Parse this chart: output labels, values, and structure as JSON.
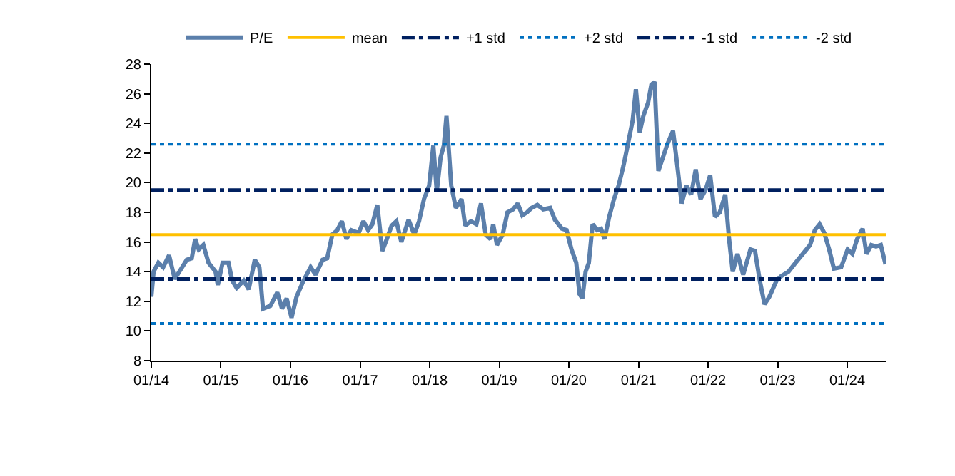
{
  "chart_data": {
    "type": "line",
    "legend": "top",
    "grid": false,
    "xlim": [
      "2014-01-01",
      "2024-07-25"
    ],
    "xticks": [
      {
        "value": "2014-01-01",
        "label": "01/14"
      },
      {
        "value": "2015-01-01",
        "label": "01/15"
      },
      {
        "value": "2016-01-01",
        "label": "01/16"
      },
      {
        "value": "2017-01-01",
        "label": "01/17"
      },
      {
        "value": "2018-01-01",
        "label": "01/18"
      },
      {
        "value": "2019-01-01",
        "label": "01/19"
      },
      {
        "value": "2020-01-01",
        "label": "01/20"
      },
      {
        "value": "2021-01-01",
        "label": "01/21"
      },
      {
        "value": "2022-01-01",
        "label": "01/22"
      },
      {
        "value": "2023-01-01",
        "label": "01/23"
      },
      {
        "value": "2024-01-01",
        "label": "01/24"
      }
    ],
    "ylim": [
      8,
      28
    ],
    "yticks": [
      8,
      10,
      12,
      14,
      16,
      18,
      20,
      22,
      24,
      26,
      28
    ],
    "series": [
      {
        "name": "P/E",
        "color": "#5b7fab",
        "line_style": "solid",
        "x": [
          "2014-01-01",
          "2014-01-13",
          "2014-02-07",
          "2014-03-04",
          "2014-04-04",
          "2014-05-04",
          "2014-05-28",
          "2014-07-06",
          "2014-08-01",
          "2014-08-19",
          "2014-09-07",
          "2014-10-01",
          "2014-10-28",
          "2014-12-04",
          "2014-12-16",
          "2015-01-10",
          "2015-02-10",
          "2015-03-01",
          "2015-03-25",
          "2015-05-01",
          "2015-05-27",
          "2015-06-28",
          "2015-07-22",
          "2015-08-10",
          "2015-09-18",
          "2015-10-24",
          "2015-11-18",
          "2015-12-12",
          "2016-01-07",
          "2016-02-02",
          "2016-03-10",
          "2016-04-16",
          "2016-05-12",
          "2016-06-18",
          "2016-07-12",
          "2016-08-08",
          "2016-09-03",
          "2016-09-27",
          "2016-10-21",
          "2016-11-15",
          "2016-12-24",
          "2017-01-18",
          "2017-02-12",
          "2017-03-06",
          "2017-04-01",
          "2017-04-27",
          "2017-05-21",
          "2017-06-15",
          "2017-07-10",
          "2017-08-05",
          "2017-09-12",
          "2017-10-12",
          "2017-11-06",
          "2017-12-02",
          "2017-12-29",
          "2018-01-20",
          "2018-02-07",
          "2018-02-27",
          "2018-03-16",
          "2018-03-30",
          "2018-04-24",
          "2018-05-18",
          "2018-06-17",
          "2018-07-06",
          "2018-08-05",
          "2018-09-03",
          "2018-09-27",
          "2018-10-22",
          "2018-11-16",
          "2018-11-30",
          "2018-12-20",
          "2019-01-19",
          "2019-02-13",
          "2019-03-14",
          "2019-04-08",
          "2019-05-02",
          "2019-05-27",
          "2019-06-20",
          "2019-07-20",
          "2019-08-20",
          "2019-09-25",
          "2019-10-20",
          "2019-11-26",
          "2019-12-20",
          "2020-01-15",
          "2020-02-09",
          "2020-02-26",
          "2020-03-12",
          "2020-03-29",
          "2020-04-15",
          "2020-05-05",
          "2020-05-29",
          "2020-06-18",
          "2020-07-06",
          "2020-07-31",
          "2020-08-25",
          "2020-09-18",
          "2020-10-13",
          "2020-11-06",
          "2020-12-01",
          "2020-12-18",
          "2021-01-07",
          "2021-01-26",
          "2021-02-20",
          "2021-03-09",
          "2021-03-26",
          "2021-04-15",
          "2021-06-01",
          "2021-07-01",
          "2021-07-21",
          "2021-08-15",
          "2021-09-09",
          "2021-10-04",
          "2021-10-28",
          "2021-11-22",
          "2021-12-18",
          "2022-01-12",
          "2022-02-06",
          "2022-03-03",
          "2022-04-01",
          "2022-04-21",
          "2022-05-10",
          "2022-06-04",
          "2022-07-04",
          "2022-08-11",
          "2022-09-04",
          "2022-09-29",
          "2022-10-24",
          "2022-11-18",
          "2022-12-26",
          "2023-01-20",
          "2023-02-27",
          "2023-04-05",
          "2023-05-13",
          "2023-06-20",
          "2023-07-15",
          "2023-08-09",
          "2023-09-03",
          "2023-09-28",
          "2023-10-23",
          "2023-11-30",
          "2024-01-03",
          "2024-01-28",
          "2024-02-22",
          "2024-03-22",
          "2024-04-11",
          "2024-05-06",
          "2024-05-31",
          "2024-06-25",
          "2024-07-20"
        ],
        "values": [
          12.3,
          14.0,
          14.6,
          14.3,
          15.1,
          13.5,
          14.0,
          14.8,
          14.9,
          16.2,
          15.5,
          15.8,
          14.6,
          14.0,
          13.1,
          14.6,
          14.6,
          13.4,
          12.9,
          13.4,
          12.8,
          14.8,
          14.3,
          11.5,
          11.7,
          12.6,
          11.5,
          12.2,
          10.9,
          12.3,
          13.4,
          14.3,
          13.8,
          14.8,
          14.9,
          16.5,
          16.8,
          17.4,
          16.2,
          16.8,
          16.6,
          17.4,
          16.8,
          17.2,
          18.5,
          15.4,
          16.2,
          17.1,
          17.4,
          16.0,
          17.5,
          16.5,
          17.4,
          18.9,
          19.8,
          22.5,
          19.4,
          21.7,
          22.5,
          24.5,
          19.8,
          18.3,
          18.9,
          17.1,
          17.4,
          17.2,
          18.6,
          16.5,
          16.2,
          17.2,
          15.8,
          16.5,
          18.0,
          18.2,
          18.6,
          17.8,
          18.0,
          18.3,
          18.5,
          18.2,
          18.3,
          17.5,
          16.9,
          16.8,
          15.5,
          14.6,
          12.5,
          12.2,
          14.0,
          14.6,
          17.2,
          16.8,
          16.9,
          16.2,
          17.7,
          18.9,
          19.8,
          21.1,
          22.6,
          24.2,
          26.3,
          23.4,
          24.5,
          25.4,
          26.6,
          26.8,
          20.8,
          22.6,
          23.5,
          21.4,
          18.6,
          19.8,
          19.2,
          20.9,
          18.9,
          19.5,
          20.5,
          17.7,
          18.0,
          19.2,
          16.2,
          14.0,
          15.2,
          13.8,
          15.5,
          15.4,
          13.4,
          11.8,
          12.3,
          13.4,
          13.7,
          14.0,
          14.6,
          15.2,
          15.8,
          16.8,
          17.2,
          16.6,
          15.5,
          14.2,
          14.3,
          15.5,
          15.2,
          16.2,
          16.9,
          15.2,
          15.8,
          15.7,
          15.8,
          14.5
        ]
      },
      {
        "name": "mean",
        "color": "#ffc000",
        "line_style": "solid",
        "x": [
          "2014-01-01",
          "2024-07-25"
        ],
        "values": [
          16.5,
          16.5
        ]
      },
      {
        "name": "+1 std",
        "color": "#002060",
        "line_style": "dashed",
        "x": [
          "2014-01-01",
          "2024-07-25"
        ],
        "values": [
          19.5,
          19.5
        ]
      },
      {
        "name": "+2 std",
        "color": "#0070c0",
        "line_style": "dotted",
        "x": [
          "2014-01-01",
          "2024-07-25"
        ],
        "values": [
          22.6,
          22.6
        ]
      },
      {
        "name": "-1 std",
        "color": "#002060",
        "line_style": "dashed",
        "x": [
          "2014-01-01",
          "2024-07-25"
        ],
        "values": [
          13.5,
          13.5
        ]
      },
      {
        "name": "-2 std",
        "color": "#0070c0",
        "line_style": "dotted",
        "x": [
          "2014-01-01",
          "2024-07-25"
        ],
        "values": [
          10.5,
          10.5
        ]
      }
    ]
  }
}
